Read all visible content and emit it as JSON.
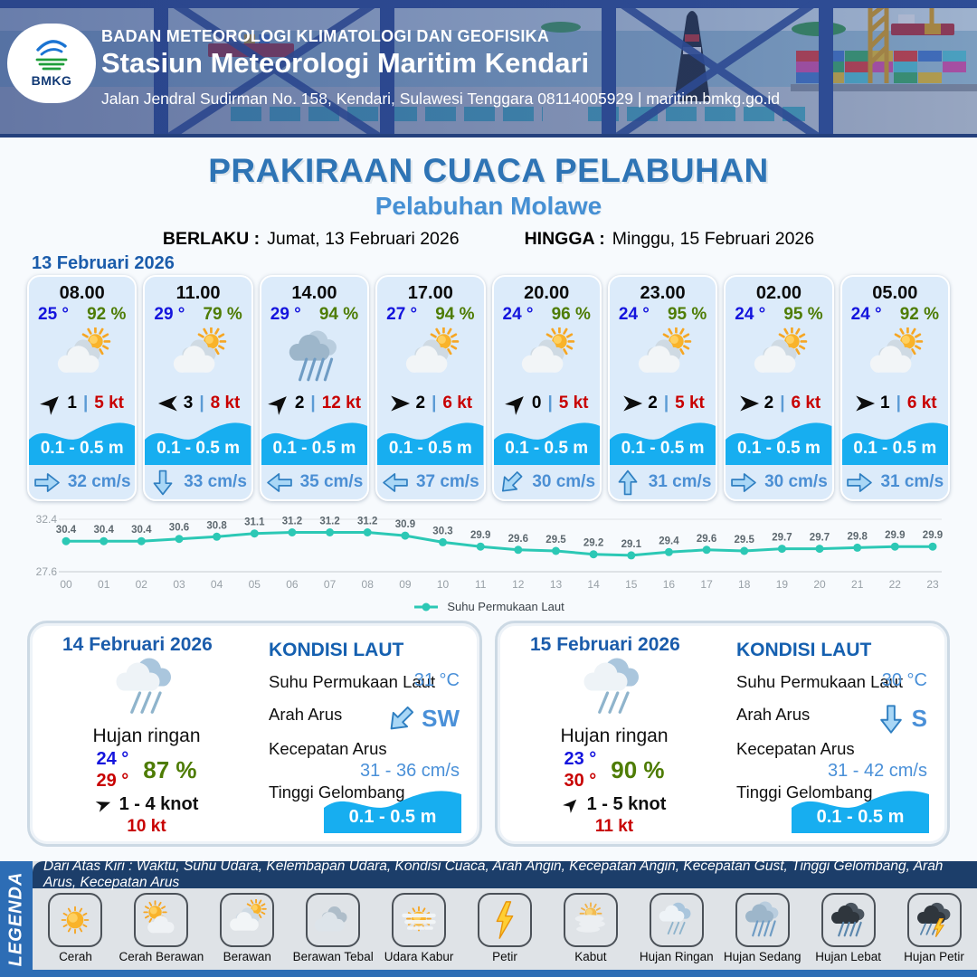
{
  "header": {
    "org": "BADAN METEOROLOGI KLIMATOLOGI DAN GEOFISIKA",
    "station": "Stasiun Meteorologi Maritim Kendari",
    "address": "Jalan Jendral Sudirman No. 158, Kendari, Sulawesi Tenggara  08114005929 | maritim.bmkg.go.id",
    "logo_label": "BMKG"
  },
  "title": {
    "main": "PRAKIRAAN CUACA PELABUHAN",
    "subtitle": "Pelabuhan Molawe",
    "berlaku_label": "BERLAKU :",
    "berlaku_value": "Jumat, 13 Februari 2026",
    "hingga_label": "HINGGA :",
    "hingga_value": "Minggu, 15 Februari 2026"
  },
  "day1": {
    "date": "13 Februari 2026",
    "cards": [
      {
        "time": "08.00",
        "temp": "25 °",
        "rh": "92 %",
        "icon": "berawan",
        "wind_dir_deg": -45,
        "wind_val": "1",
        "gust": "5 kt",
        "wave": "0.1 - 0.5 m",
        "cur_dir_deg": 0,
        "cur_speed": "32 cm/s"
      },
      {
        "time": "11.00",
        "temp": "29 °",
        "rh": "79 %",
        "icon": "berawan",
        "wind_dir_deg": 180,
        "wind_val": "3",
        "gust": "8 kt",
        "wave": "0.1 - 0.5 m",
        "cur_dir_deg": 90,
        "cur_speed": "33 cm/s"
      },
      {
        "time": "14.00",
        "temp": "29 °",
        "rh": "94 %",
        "icon": "hujan-sedang",
        "wind_dir_deg": -45,
        "wind_val": "2",
        "gust": "12 kt",
        "wave": "0.1 - 0.5 m",
        "cur_dir_deg": 180,
        "cur_speed": "35 cm/s"
      },
      {
        "time": "17.00",
        "temp": "27 °",
        "rh": "94 %",
        "icon": "berawan",
        "wind_dir_deg": 0,
        "wind_val": "2",
        "gust": "6 kt",
        "wave": "0.1 - 0.5 m",
        "cur_dir_deg": 180,
        "cur_speed": "37 cm/s"
      },
      {
        "time": "20.00",
        "temp": "24 °",
        "rh": "96 %",
        "icon": "berawan",
        "wind_dir_deg": -45,
        "wind_val": "0",
        "gust": "5 kt",
        "wave": "0.1 - 0.5 m",
        "cur_dir_deg": 135,
        "cur_speed": "30 cm/s"
      },
      {
        "time": "23.00",
        "temp": "24 °",
        "rh": "95 %",
        "icon": "berawan",
        "wind_dir_deg": 0,
        "wind_val": "2",
        "gust": "5 kt",
        "wave": "0.1 - 0.5 m",
        "cur_dir_deg": -90,
        "cur_speed": "31 cm/s"
      },
      {
        "time": "02.00",
        "temp": "24 °",
        "rh": "95 %",
        "icon": "berawan",
        "wind_dir_deg": 0,
        "wind_val": "2",
        "gust": "6 kt",
        "wave": "0.1 - 0.5 m",
        "cur_dir_deg": 0,
        "cur_speed": "30 cm/s"
      },
      {
        "time": "05.00",
        "temp": "24 °",
        "rh": "92 %",
        "icon": "berawan",
        "wind_dir_deg": 0,
        "wind_val": "1",
        "gust": "6 kt",
        "wave": "0.1 - 0.5 m",
        "cur_dir_deg": 0,
        "cur_speed": "31 cm/s"
      }
    ]
  },
  "chart_data": {
    "type": "line",
    "series_name": "Suhu Permukaan Laut",
    "x": [
      "00",
      "01",
      "02",
      "03",
      "04",
      "05",
      "06",
      "07",
      "08",
      "09",
      "10",
      "11",
      "12",
      "13",
      "14",
      "15",
      "16",
      "17",
      "18",
      "19",
      "20",
      "21",
      "22",
      "23"
    ],
    "values": [
      30.4,
      30.4,
      30.4,
      30.6,
      30.8,
      31.1,
      31.2,
      31.2,
      31.2,
      30.9,
      30.3,
      29.9,
      29.6,
      29.5,
      29.2,
      29.1,
      29.4,
      29.6,
      29.5,
      29.7,
      29.7,
      29.8,
      29.9,
      29.9
    ],
    "ylim": [
      27.6,
      32.4
    ],
    "line_color": "#2cc8b5",
    "grid": true,
    "legend_position": "bottom"
  },
  "daily": [
    {
      "date": "14 Februari 2026",
      "icon": "hujan-ringan",
      "condition": "Hujan ringan",
      "temp_min": "24 °",
      "temp_max": "29 °",
      "rh": "87 %",
      "wind": "1  - 4 knot",
      "gust": "10 kt",
      "wind_dir_deg": -20,
      "sea": {
        "heading": "KONDISI LAUT",
        "sst_label": "Suhu Permukaan Laut",
        "sst": "31 °C",
        "arah_label": "Arah Arus",
        "arah": "SW",
        "arah_deg": 135,
        "kec_label": "Kecepatan Arus",
        "kec": "31 - 36 cm/s",
        "wave_label": "Tinggi Gelombang",
        "wave": "0.1 - 0.5 m"
      }
    },
    {
      "date": "15 Februari 2026",
      "icon": "hujan-ringan",
      "condition": "Hujan ringan",
      "temp_min": "23 °",
      "temp_max": "30 °",
      "rh": "90 %",
      "wind": "1  - 5 knot",
      "gust": "11 kt",
      "wind_dir_deg": -45,
      "sea": {
        "heading": "KONDISI LAUT",
        "sst_label": "Suhu Permukaan Laut",
        "sst": "30 °C",
        "arah_label": "Arah Arus",
        "arah": "S",
        "arah_deg": 90,
        "kec_label": "Kecepatan Arus",
        "kec": "31 - 42 cm/s",
        "wave_label": "Tinggi Gelombang",
        "wave": "0.1 - 0.5 m"
      }
    }
  ],
  "legend": {
    "label": "LEGENDA",
    "note": "Dari Atas Kiri : Waktu, Suhu Udara, Kelembapan Udara, Kondisi Cuaca, Arah Angin, Kecepatan Angin, Kecepatan Gust, Tinggi Gelombang, Arah Arus, Kecepatan Arus",
    "items": [
      {
        "icon": "cerah",
        "label": "Cerah"
      },
      {
        "icon": "cerah-berawan",
        "label": "Cerah Berawan"
      },
      {
        "icon": "berawan",
        "label": "Berawan"
      },
      {
        "icon": "berawan-tebal",
        "label": "Berawan Tebal"
      },
      {
        "icon": "udara-kabur",
        "label": "Udara Kabur"
      },
      {
        "icon": "petir",
        "label": "Petir"
      },
      {
        "icon": "kabut",
        "label": "Kabut"
      },
      {
        "icon": "hujan-ringan",
        "label": "Hujan Ringan"
      },
      {
        "icon": "hujan-sedang",
        "label": "Hujan Sedang"
      },
      {
        "icon": "hujan-lebat",
        "label": "Hujan Lebat"
      },
      {
        "icon": "hujan-petir",
        "label": "Hujan Petir"
      }
    ]
  },
  "colors": {
    "title": "#2e74b5",
    "subtitle": "#4690d4",
    "temp_blue": "#1414dd",
    "humidity_green": "#4e7c04",
    "gust_red": "#c80000",
    "wave_blue": "#17aef0",
    "chart_line": "#2cc8b5",
    "value_blue": "#4a90d8",
    "legend_bar": "#2d6db5",
    "note_navy": "#1c3e6a"
  }
}
